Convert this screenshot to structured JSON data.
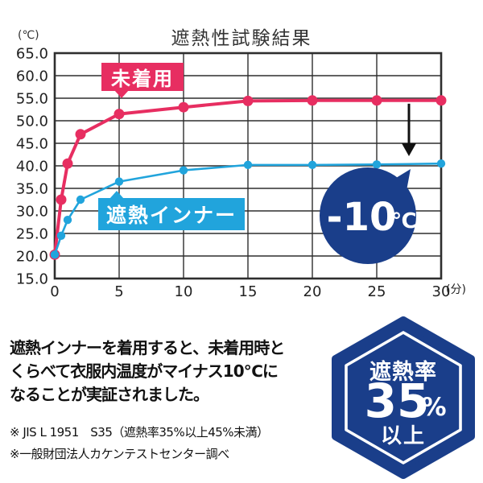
{
  "chart": {
    "title": "遮熱性試験結果",
    "y_unit": "(℃)",
    "x_unit": "(分)",
    "chart_data": {
      "type": "line",
      "x": [
        0,
        0.5,
        1,
        2,
        5,
        10,
        15,
        20,
        25,
        30
      ],
      "series": [
        {
          "name": "未着用",
          "color": "#e72e61",
          "values": [
            20.3,
            32.5,
            40.5,
            47.0,
            51.5,
            53.0,
            54.4,
            54.5,
            54.5,
            54.5
          ]
        },
        {
          "name": "遮熱インナー",
          "color": "#21a4dc",
          "values": [
            20.3,
            24.5,
            28.0,
            32.5,
            36.5,
            39.0,
            40.2,
            40.2,
            40.3,
            40.5
          ]
        }
      ],
      "ylim": [
        15.0,
        65.0
      ],
      "ytick_step": 5.0,
      "xticks": [
        0,
        5,
        10,
        15,
        20,
        25,
        30
      ],
      "xlabel_unit": "(分)",
      "ylabel_unit": "(℃)",
      "grid": true,
      "legend_position": "inline-labels-on-lines"
    },
    "labels": {
      "pink": "未着用",
      "blue": "遮熱インナー"
    },
    "diff_badge": {
      "value": "-10",
      "unit": "℃"
    }
  },
  "description": {
    "line1": "遮熱インナーを着用すると、未着用時と",
    "line2": "くらべて衣服内温度がマイナス10℃に",
    "line3": "なることが実証されました。"
  },
  "footnotes": {
    "line1": "※ JIS L 1951　S35（遮熱率35%以上45%未満）",
    "line2": "※一般財団法人カケンテストセンター調べ"
  },
  "hex_badge": {
    "top": "遮熱率",
    "value": "35",
    "percent": "%",
    "bottom": "以上"
  },
  "colors": {
    "pink": "#e72e61",
    "blue": "#21a4dc",
    "navy": "#1a3e8a",
    "grid": "#2e2e2e",
    "text": "#111111"
  }
}
